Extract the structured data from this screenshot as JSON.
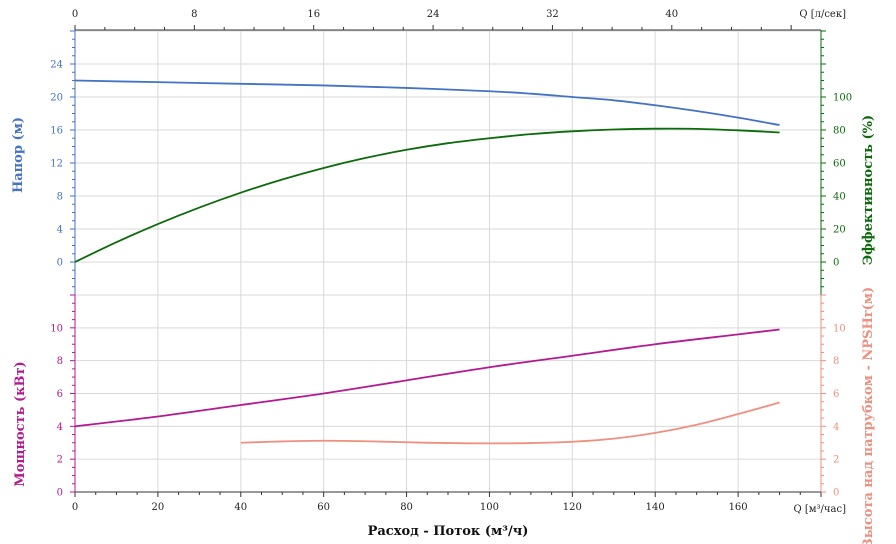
{
  "chart_data": [
    {
      "type": "line",
      "panel": "top",
      "xlabel": "Расход - Поток (м³/ч)",
      "x_unit_bottom": "Q [м³/час]",
      "x_unit_top": "Q [л/сек]",
      "xlim": [
        0,
        180
      ],
      "x_ticks_bottom": [
        0,
        20,
        40,
        60,
        80,
        100,
        120,
        140,
        160
      ],
      "x_ticks_top": [
        0,
        8,
        16,
        24,
        32,
        40
      ],
      "y_left": {
        "label": "Напор (м)",
        "lim": [
          -4,
          28
        ],
        "ticks": [
          0,
          4,
          8,
          12,
          16,
          20,
          24
        ],
        "color": "#4472c4"
      },
      "y_right": {
        "label": "Эффективность (%)",
        "lim": [
          -20,
          140
        ],
        "ticks": [
          0,
          20,
          40,
          60,
          80,
          100
        ],
        "color": "#0b6b0b"
      },
      "series": [
        {
          "name": "Напор (м)",
          "axis": "left",
          "color": "#4472c4",
          "x": [
            0,
            20,
            40,
            60,
            80,
            100,
            110,
            120,
            130,
            140,
            150,
            160,
            170
          ],
          "y": [
            22.0,
            21.8,
            21.6,
            21.4,
            21.1,
            20.7,
            20.4,
            20.0,
            19.6,
            19.0,
            18.3,
            17.5,
            16.6
          ]
        },
        {
          "name": "Эффективность (%)",
          "axis": "right",
          "color": "#0b6b0b",
          "x": [
            0,
            10,
            20,
            30,
            40,
            50,
            60,
            70,
            80,
            90,
            100,
            110,
            120,
            130,
            140,
            150,
            160,
            170
          ],
          "y": [
            0,
            12,
            23,
            33,
            42,
            50,
            57,
            63,
            68,
            72,
            75,
            77.5,
            79.2,
            80.3,
            80.8,
            80.7,
            79.8,
            78.5
          ]
        }
      ]
    },
    {
      "type": "line",
      "panel": "bottom",
      "xlim": [
        0,
        180
      ],
      "y_left": {
        "label": "Мощность (кВт)",
        "lim": [
          0,
          12
        ],
        "ticks": [
          0,
          2,
          4,
          6,
          8,
          10
        ],
        "color": "#b5198f"
      },
      "y_right": {
        "label": "Высота над патрубком - NPSHr(м)",
        "lim": [
          0,
          12
        ],
        "ticks": [
          0,
          2,
          4,
          6,
          8,
          10
        ],
        "color": "#ee8f80"
      },
      "series": [
        {
          "name": "Мощность (кВт)",
          "axis": "left",
          "color": "#b5198f",
          "x": [
            0,
            20,
            40,
            60,
            80,
            100,
            120,
            140,
            160,
            170
          ],
          "y": [
            4.0,
            4.6,
            5.3,
            6.0,
            6.8,
            7.6,
            8.3,
            9.0,
            9.6,
            9.9
          ]
        },
        {
          "name": "Высота над патрубком - NPSHr(м)",
          "axis": "right",
          "color": "#ee8f80",
          "x": [
            40,
            50,
            60,
            70,
            80,
            90,
            100,
            110,
            120,
            130,
            140,
            150,
            160,
            170
          ],
          "y": [
            3.0,
            3.08,
            3.12,
            3.09,
            3.03,
            2.98,
            2.96,
            2.98,
            3.06,
            3.25,
            3.6,
            4.1,
            4.75,
            5.45
          ]
        }
      ]
    }
  ]
}
